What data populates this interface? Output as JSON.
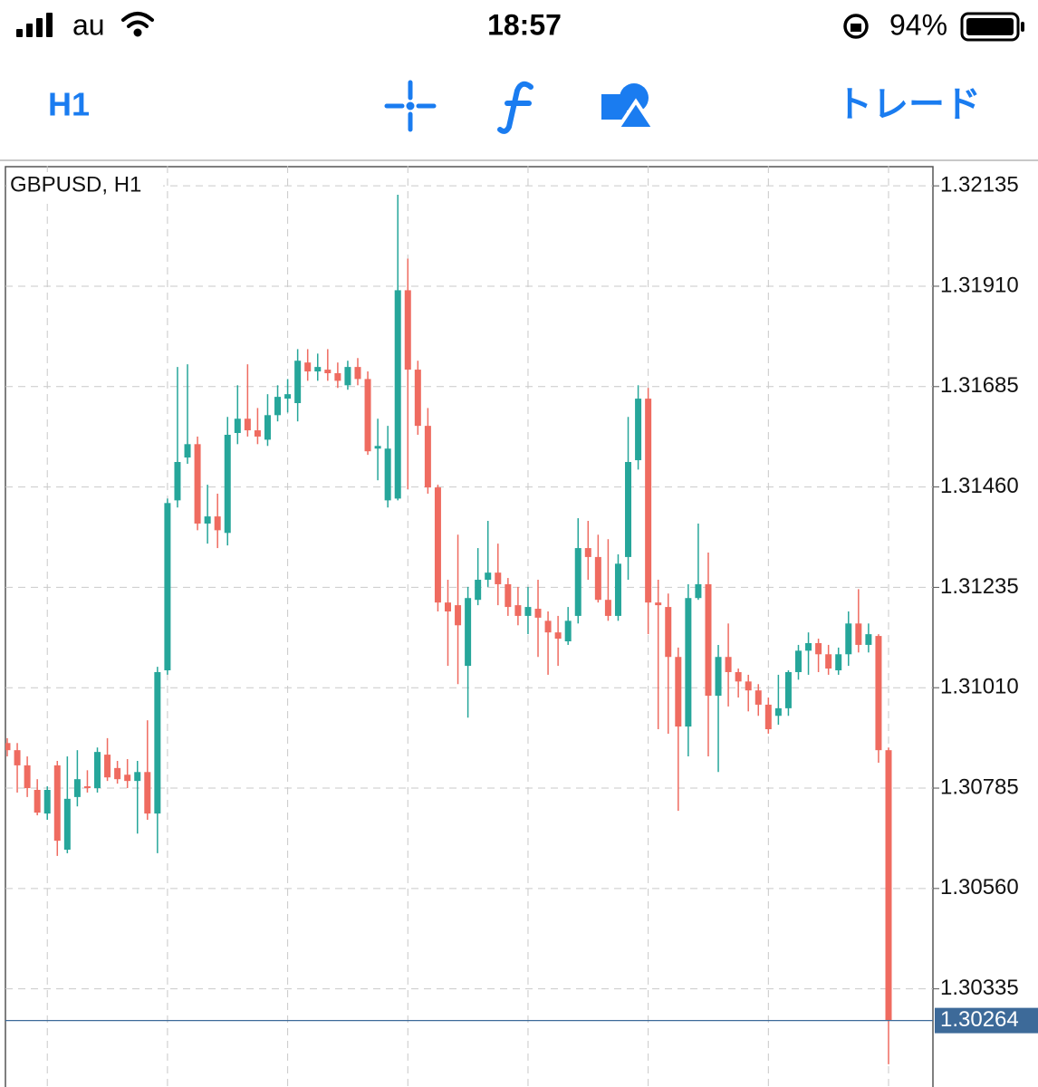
{
  "status_bar": {
    "carrier": "au",
    "time": "18:57",
    "battery": "94%"
  },
  "toolbar": {
    "timeframe": "H1",
    "trade": "トレード"
  },
  "chart_data": {
    "type": "candlestick",
    "title": "GBPUSD, H1",
    "up_color": "#26a69a",
    "down_color": "#ef6b60",
    "grid": true,
    "open": [
      1.30886,
      1.3087,
      1.30836,
      1.30781,
      1.30728,
      1.30836,
      1.30647,
      1.30765,
      1.30789,
      1.30785,
      1.3086,
      1.3083,
      1.30815,
      1.30801,
      1.30821,
      1.30728,
      1.31049,
      1.3143,
      1.31526,
      1.31556,
      1.31378,
      1.31394,
      1.31357,
      1.31581,
      1.31613,
      1.31587,
      1.31566,
      1.31621,
      1.31658,
      1.31648,
      1.31739,
      1.31719,
      1.31723,
      1.31715,
      1.31688,
      1.31729,
      1.31702,
      1.31546,
      1.3143,
      1.31434,
      1.31901,
      1.31723,
      1.31597,
      1.31459,
      1.31201,
      1.31195,
      1.31059,
      1.31207,
      1.31252,
      1.31268,
      1.31242,
      1.31195,
      1.31171,
      1.31187,
      1.3116,
      1.31134,
      1.31114,
      1.31171,
      1.31323,
      1.31303,
      1.31207,
      1.31171,
      1.31303,
      1.3152,
      1.31658,
      1.31201,
      1.31191,
      1.31079,
      1.30923,
      1.31211,
      1.31242,
      1.30992,
      1.31079,
      1.31045,
      1.31024,
      1.31004,
      1.30972,
      1.30947,
      1.30964,
      1.31045,
      1.31093,
      1.3111,
      1.31085,
      1.31049,
      1.31085,
      1.31154,
      1.31106,
      1.31126,
      1.3087
    ],
    "high": [
      1.30897,
      1.30886,
      1.30856,
      1.30805,
      1.30789,
      1.30846,
      1.30856,
      1.3087,
      1.30825,
      1.30876,
      1.30897,
      1.30846,
      1.3085,
      1.30846,
      1.30937,
      1.31057,
      1.31434,
      1.31729,
      1.31735,
      1.31573,
      1.31465,
      1.31445,
      1.31617,
      1.31688,
      1.31735,
      1.31637,
      1.31668,
      1.31688,
      1.31702,
      1.31769,
      1.31769,
      1.31759,
      1.31769,
      1.31739,
      1.31743,
      1.31749,
      1.31719,
      1.31613,
      1.31597,
      1.32115,
      1.31972,
      1.31743,
      1.31637,
      1.31465,
      1.31252,
      1.31353,
      1.31236,
      1.31323,
      1.31384,
      1.31333,
      1.31256,
      1.31236,
      1.31236,
      1.31252,
      1.31181,
      1.31171,
      1.31191,
      1.3139,
      1.31384,
      1.31353,
      1.31343,
      1.31309,
      1.31617,
      1.31688,
      1.31682,
      1.31252,
      1.31221,
      1.311,
      1.31242,
      1.31378,
      1.31313,
      1.31106,
      1.31154,
      1.31053,
      1.31039,
      1.31018,
      1.30988,
      1.31039,
      1.31049,
      1.31106,
      1.31134,
      1.3112,
      1.31106,
      1.311,
      1.31181,
      1.31231,
      1.31154,
      1.3113,
      1.30876
    ],
    "low": [
      1.30856,
      1.30775,
      1.30765,
      1.30724,
      1.30714,
      1.30633,
      1.30639,
      1.30744,
      1.30775,
      1.30775,
      1.30801,
      1.30795,
      1.30785,
      1.30683,
      1.30714,
      1.30639,
      1.31039,
      1.31414,
      1.31512,
      1.31363,
      1.31333,
      1.31323,
      1.31329,
      1.31556,
      1.31573,
      1.31556,
      1.31552,
      1.31607,
      1.31627,
      1.31607,
      1.31698,
      1.31698,
      1.31698,
      1.31682,
      1.31678,
      1.31688,
      1.31532,
      1.31475,
      1.31414,
      1.3143,
      1.31455,
      1.31577,
      1.31445,
      1.31181,
      1.31059,
      1.31018,
      1.30943,
      1.31195,
      1.31236,
      1.31195,
      1.31171,
      1.3115,
      1.3113,
      1.31079,
      1.31039,
      1.31059,
      1.31106,
      1.31154,
      1.31252,
      1.31201,
      1.3116,
      1.3116,
      1.31252,
      1.31499,
      1.3113,
      1.30917,
      1.30907,
      1.30734,
      1.30856,
      1.31207,
      1.30856,
      1.30821,
      1.30968,
      1.30988,
      1.30957,
      1.30947,
      1.30907,
      1.30927,
      1.30947,
      1.31028,
      1.31039,
      1.31045,
      1.31039,
      1.31039,
      1.31059,
      1.31089,
      1.31089,
      1.30842,
      1.30166
    ],
    "close": [
      1.3087,
      1.30836,
      1.30785,
      1.3073,
      1.30781,
      1.30667,
      1.30761,
      1.30805,
      1.30785,
      1.30866,
      1.30809,
      1.30805,
      1.30801,
      1.30821,
      1.30728,
      1.31045,
      1.31424,
      1.31516,
      1.31556,
      1.31378,
      1.31394,
      1.31363,
      1.31577,
      1.31613,
      1.31587,
      1.31573,
      1.31621,
      1.31662,
      1.31668,
      1.31743,
      1.31719,
      1.31729,
      1.31715,
      1.31698,
      1.31729,
      1.31702,
      1.3154,
      1.31552,
      1.31546,
      1.31901,
      1.31723,
      1.31597,
      1.31459,
      1.31201,
      1.31181,
      1.3115,
      1.31211,
      1.31252,
      1.31268,
      1.31242,
      1.31191,
      1.31171,
      1.31191,
      1.31167,
      1.31134,
      1.3112,
      1.3116,
      1.31323,
      1.31303,
      1.31207,
      1.31171,
      1.31288,
      1.31516,
      1.31658,
      1.31201,
      1.31195,
      1.31079,
      1.30923,
      1.31211,
      1.31242,
      1.30992,
      1.31079,
      1.31045,
      1.31024,
      1.31004,
      1.30972,
      1.30917,
      1.30964,
      1.31045,
      1.31093,
      1.3111,
      1.31085,
      1.31053,
      1.31085,
      1.31154,
      1.31106,
      1.3113,
      1.3087,
      1.30264
    ],
    "last_price": 1.30264,
    "ylim": [
      1.30115,
      1.3218
    ],
    "yticks": [
      1.32135,
      {
        "value": 1.3191,
        "label": "1.31910"
      },
      1.31685,
      {
        "value": 1.3146,
        "label": "1.31460"
      },
      1.31235,
      {
        "value": 1.3101,
        "label": "1.31010"
      },
      1.30785,
      {
        "value": 1.3056,
        "label": "1.30560"
      },
      1.30335
    ]
  }
}
